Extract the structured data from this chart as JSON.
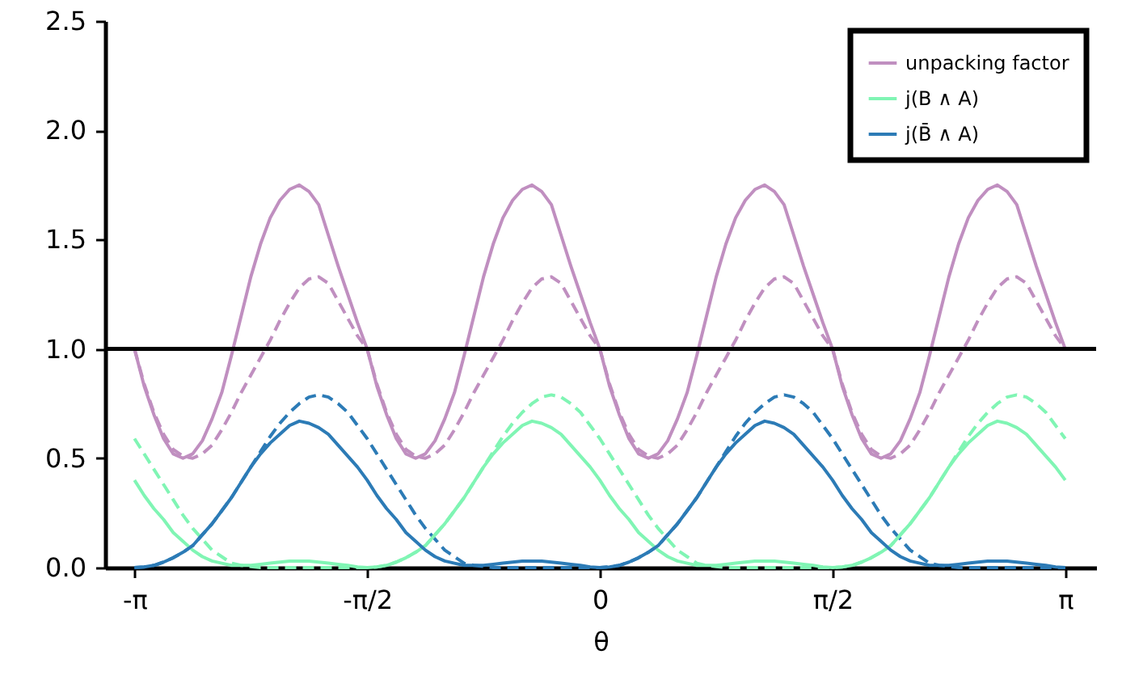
{
  "chart_data": {
    "type": "line",
    "xlabel": "θ",
    "x": [
      -3.1416,
      -3.0761,
      -3.0107,
      -2.9452,
      -2.8798,
      -2.8143,
      -2.7489,
      -2.6834,
      -2.618,
      -2.5525,
      -2.4871,
      -2.4216,
      -2.3562,
      -2.2907,
      -2.2253,
      -2.1598,
      -2.0944,
      -2.0289,
      -1.9635,
      -1.898,
      -1.8326,
      -1.7671,
      -1.7017,
      -1.6362,
      -1.5708,
      -1.5053,
      -1.4399,
      -1.3744,
      -1.309,
      -1.2435,
      -1.1781,
      -1.1126,
      -1.0472,
      -0.9817,
      -0.9163,
      -0.8508,
      -0.7854,
      -0.7199,
      -0.6545,
      -0.589,
      -0.5236,
      -0.4581,
      -0.3927,
      -0.3272,
      -0.2618,
      -0.1963,
      -0.1309,
      -0.0654,
      0,
      0.0654,
      0.1309,
      0.1963,
      0.2618,
      0.3272,
      0.3927,
      0.4581,
      0.5236,
      0.589,
      0.6545,
      0.7199,
      0.7854,
      0.8508,
      0.9163,
      0.9817,
      1.0472,
      1.1126,
      1.1781,
      1.2435,
      1.309,
      1.3744,
      1.4399,
      1.5053,
      1.5708,
      1.6362,
      1.7017,
      1.7671,
      1.8326,
      1.898,
      1.9635,
      2.0289,
      2.0944,
      2.1598,
      2.2253,
      2.2907,
      2.3562,
      2.4216,
      2.4871,
      2.5525,
      2.618,
      2.6834,
      2.7489,
      2.8143,
      2.8798,
      2.9452,
      3.0107,
      3.0761,
      3.1416
    ],
    "series": [
      {
        "name": "unpacking factor",
        "color": "#c08fc0",
        "values": [
          1,
          0.83,
          0.7,
          0.59,
          0.52,
          0.5,
          0.52,
          0.58,
          0.68,
          0.8,
          0.97,
          1.15,
          1.33,
          1.48,
          1.6,
          1.68,
          1.73,
          1.75,
          1.72,
          1.66,
          1.52,
          1.38,
          1.25,
          1.12,
          1,
          0.83,
          0.7,
          0.59,
          0.52,
          0.5,
          0.52,
          0.58,
          0.68,
          0.8,
          0.97,
          1.15,
          1.33,
          1.48,
          1.6,
          1.68,
          1.73,
          1.75,
          1.72,
          1.66,
          1.52,
          1.38,
          1.25,
          1.12,
          1,
          0.83,
          0.7,
          0.59,
          0.52,
          0.5,
          0.52,
          0.58,
          0.68,
          0.8,
          0.97,
          1.15,
          1.33,
          1.48,
          1.6,
          1.68,
          1.73,
          1.75,
          1.72,
          1.66,
          1.52,
          1.38,
          1.25,
          1.12,
          1,
          0.83,
          0.7,
          0.59,
          0.52,
          0.5,
          0.52,
          0.58,
          0.68,
          0.8,
          0.97,
          1.15,
          1.33,
          1.48,
          1.6,
          1.68,
          1.73,
          1.75,
          1.72,
          1.66,
          1.52,
          1.38,
          1.25,
          1.12,
          1
        ]
      },
      {
        "name": "j(B ∧ A)",
        "color": "#80f5b4",
        "values": [
          0.4,
          0.33,
          0.27,
          0.22,
          0.16,
          0.12,
          0.08,
          0.05,
          0.03,
          0.02,
          0.01,
          0.01,
          0.01,
          0.015,
          0.02,
          0.025,
          0.03,
          0.03,
          0.03,
          0.025,
          0.02,
          0.015,
          0.01,
          0.003,
          0,
          0.003,
          0.01,
          0.025,
          0.045,
          0.07,
          0.1,
          0.15,
          0.2,
          0.26,
          0.32,
          0.39,
          0.46,
          0.52,
          0.57,
          0.61,
          0.65,
          0.67,
          0.66,
          0.64,
          0.61,
          0.56,
          0.51,
          0.46,
          0.4,
          0.33,
          0.27,
          0.22,
          0.16,
          0.12,
          0.08,
          0.05,
          0.03,
          0.02,
          0.01,
          0.01,
          0.01,
          0.015,
          0.02,
          0.025,
          0.03,
          0.03,
          0.03,
          0.025,
          0.02,
          0.015,
          0.01,
          0.003,
          0,
          0.003,
          0.01,
          0.025,
          0.045,
          0.07,
          0.1,
          0.15,
          0.2,
          0.26,
          0.32,
          0.39,
          0.46,
          0.52,
          0.57,
          0.61,
          0.65,
          0.67,
          0.66,
          0.64,
          0.61,
          0.56,
          0.51,
          0.46,
          0.4
        ]
      },
      {
        "name": "j(B̄ ∧ A)",
        "color": "#2c7bb6",
        "values": [
          0,
          0.003,
          0.01,
          0.025,
          0.045,
          0.07,
          0.1,
          0.15,
          0.2,
          0.26,
          0.32,
          0.39,
          0.46,
          0.52,
          0.57,
          0.61,
          0.65,
          0.67,
          0.66,
          0.64,
          0.61,
          0.56,
          0.51,
          0.46,
          0.4,
          0.33,
          0.27,
          0.22,
          0.16,
          0.12,
          0.08,
          0.05,
          0.03,
          0.02,
          0.01,
          0.01,
          0.01,
          0.015,
          0.02,
          0.025,
          0.03,
          0.03,
          0.03,
          0.025,
          0.02,
          0.015,
          0.01,
          0.003,
          0,
          0.003,
          0.01,
          0.025,
          0.045,
          0.07,
          0.1,
          0.15,
          0.2,
          0.26,
          0.32,
          0.39,
          0.46,
          0.52,
          0.57,
          0.61,
          0.65,
          0.67,
          0.66,
          0.64,
          0.61,
          0.56,
          0.51,
          0.46,
          0.4,
          0.33,
          0.27,
          0.22,
          0.16,
          0.12,
          0.08,
          0.05,
          0.03,
          0.02,
          0.01,
          0.01,
          0.01,
          0.015,
          0.02,
          0.025,
          0.03,
          0.03,
          0.03,
          0.025,
          0.02,
          0.015,
          0.01,
          0.003,
          0
        ]
      },
      {
        "color": "#c08fc0",
        "line_style": "dashed",
        "values": [
          1,
          0.84,
          0.71,
          0.61,
          0.54,
          0.51,
          0.5,
          0.52,
          0.56,
          0.63,
          0.71,
          0.8,
          0.88,
          0.96,
          1.04,
          1.13,
          1.21,
          1.28,
          1.32,
          1.33,
          1.3,
          1.22,
          1.14,
          1.06,
          1,
          0.84,
          0.71,
          0.61,
          0.54,
          0.51,
          0.5,
          0.52,
          0.56,
          0.63,
          0.71,
          0.8,
          0.88,
          0.96,
          1.04,
          1.13,
          1.21,
          1.28,
          1.32,
          1.33,
          1.3,
          1.22,
          1.14,
          1.06,
          1,
          0.84,
          0.71,
          0.61,
          0.54,
          0.51,
          0.5,
          0.52,
          0.56,
          0.63,
          0.71,
          0.8,
          0.88,
          0.96,
          1.04,
          1.13,
          1.21,
          1.28,
          1.32,
          1.33,
          1.3,
          1.22,
          1.14,
          1.06,
          1,
          0.84,
          0.71,
          0.61,
          0.54,
          0.51,
          0.5,
          0.52,
          0.56,
          0.63,
          0.71,
          0.8,
          0.88,
          0.96,
          1.04,
          1.13,
          1.21,
          1.28,
          1.32,
          1.33,
          1.3,
          1.22,
          1.14,
          1.06,
          1
        ]
      },
      {
        "color": "#80f5b4",
        "line_style": "dashed",
        "values": [
          0.59,
          0.52,
          0.45,
          0.38,
          0.31,
          0.24,
          0.18,
          0.13,
          0.08,
          0.05,
          0.02,
          0.01,
          0.005,
          0,
          0,
          0,
          0,
          0,
          0,
          0,
          0,
          0,
          0,
          0,
          0,
          0.003,
          0.01,
          0.025,
          0.045,
          0.07,
          0.1,
          0.15,
          0.2,
          0.26,
          0.32,
          0.39,
          0.46,
          0.53,
          0.6,
          0.66,
          0.71,
          0.75,
          0.78,
          0.79,
          0.78,
          0.75,
          0.71,
          0.65,
          0.59,
          0.52,
          0.45,
          0.38,
          0.31,
          0.24,
          0.18,
          0.13,
          0.08,
          0.05,
          0.02,
          0.01,
          0.005,
          0,
          0,
          0,
          0,
          0,
          0,
          0,
          0,
          0,
          0,
          0,
          0,
          0.003,
          0.01,
          0.025,
          0.045,
          0.07,
          0.1,
          0.15,
          0.2,
          0.26,
          0.32,
          0.39,
          0.46,
          0.53,
          0.6,
          0.66,
          0.71,
          0.75,
          0.78,
          0.79,
          0.78,
          0.75,
          0.71,
          0.65,
          0.59
        ]
      },
      {
        "color": "#2c7bb6",
        "line_style": "dashed",
        "values": [
          0,
          0.003,
          0.01,
          0.025,
          0.045,
          0.07,
          0.1,
          0.15,
          0.2,
          0.26,
          0.32,
          0.39,
          0.46,
          0.53,
          0.6,
          0.66,
          0.71,
          0.75,
          0.78,
          0.79,
          0.78,
          0.75,
          0.71,
          0.65,
          0.59,
          0.52,
          0.45,
          0.38,
          0.31,
          0.24,
          0.18,
          0.13,
          0.08,
          0.05,
          0.02,
          0.01,
          0.005,
          0,
          0,
          0,
          0,
          0,
          0,
          0,
          0,
          0,
          0,
          0,
          0,
          0.003,
          0.01,
          0.025,
          0.045,
          0.07,
          0.1,
          0.15,
          0.2,
          0.26,
          0.32,
          0.39,
          0.46,
          0.53,
          0.6,
          0.66,
          0.71,
          0.75,
          0.78,
          0.79,
          0.78,
          0.75,
          0.71,
          0.65,
          0.59,
          0.52,
          0.45,
          0.38,
          0.31,
          0.24,
          0.18,
          0.13,
          0.08,
          0.05,
          0.02,
          0.01,
          0.005,
          0,
          0,
          0,
          0,
          0,
          0,
          0,
          0,
          0,
          0,
          0,
          0
        ]
      }
    ],
    "xlim": [
      -3.34,
      3.35
    ],
    "xticks": [
      {
        "value": -3.1416,
        "label": "-π"
      },
      {
        "value": -1.5708,
        "label": "-π/2"
      },
      0,
      {
        "value": 1.5708,
        "label": "π/2"
      },
      {
        "value": 3.1416,
        "label": "π"
      }
    ],
    "ylim": [
      0,
      2.5
    ],
    "yticks": [
      {
        "value": 0,
        "label": "0.0"
      },
      {
        "value": 0.5,
        "label": "0.5"
      },
      {
        "value": 1,
        "label": "1.0"
      },
      {
        "value": 1.5,
        "label": "1.5"
      },
      {
        "value": 2,
        "label": "2.0"
      },
      {
        "value": 2.5,
        "label": "2.5"
      }
    ],
    "ref_lines": [
      {
        "axis": "y",
        "value": 1,
        "color": "#000000"
      }
    ],
    "legend": "top right",
    "grid": false,
    "marker": "none",
    "line_style": "solid"
  }
}
